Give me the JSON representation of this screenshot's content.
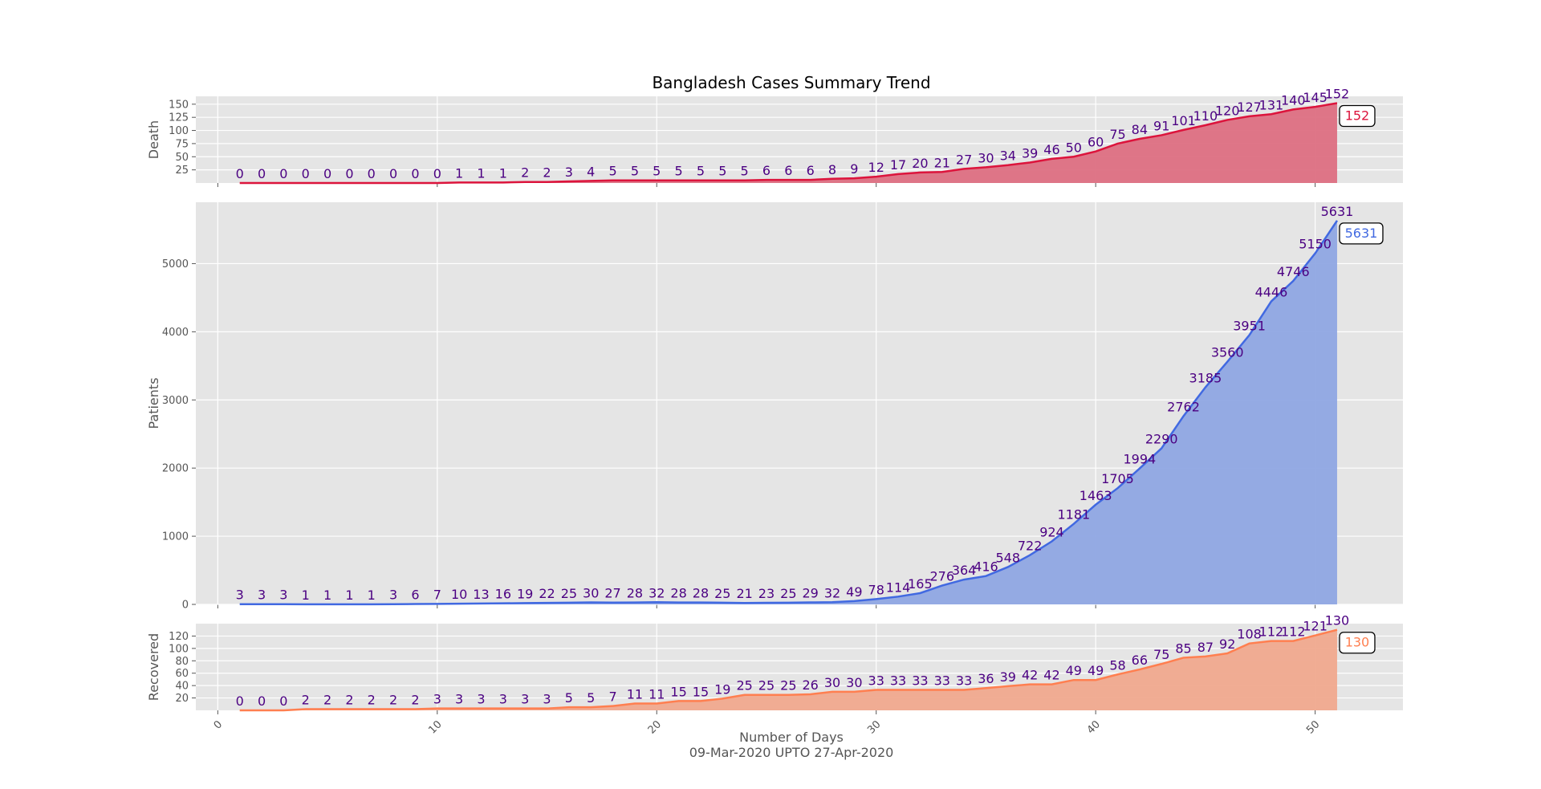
{
  "chart_data": {
    "type": "area",
    "title": "Bangladesh Cases Summary Trend",
    "xlabel": "Number of Days",
    "xlabel_sub": "09-Mar-2020 UPTO 27-Apr-2020",
    "xlim": [
      -1,
      54
    ],
    "xticks": [
      0,
      10,
      20,
      30,
      40,
      50
    ],
    "grid": true,
    "x": [
      1,
      2,
      3,
      4,
      5,
      6,
      7,
      8,
      9,
      10,
      11,
      12,
      13,
      14,
      15,
      16,
      17,
      18,
      19,
      20,
      21,
      22,
      23,
      24,
      25,
      26,
      27,
      28,
      29,
      30,
      31,
      32,
      33,
      34,
      35,
      36,
      37,
      38,
      39,
      40,
      41,
      42,
      43,
      44,
      45,
      46,
      47,
      48,
      49,
      50,
      51
    ],
    "panels": [
      {
        "id": "death",
        "ylabel": "Death",
        "ylim": [
          0,
          165
        ],
        "yticks": [
          25,
          50,
          75,
          100,
          125,
          150
        ],
        "line_color": "#dc143c",
        "fill_color": "#dd6f82",
        "values": [
          0,
          0,
          0,
          0,
          0,
          0,
          0,
          0,
          0,
          0,
          1,
          1,
          1,
          2,
          2,
          3,
          4,
          5,
          5,
          5,
          5,
          5,
          5,
          5,
          6,
          6,
          6,
          8,
          9,
          12,
          17,
          20,
          21,
          27,
          30,
          34,
          39,
          46,
          50,
          60,
          75,
          84,
          91,
          101,
          110,
          120,
          127,
          131,
          140,
          145,
          152
        ],
        "last_label": "152"
      },
      {
        "id": "patients",
        "ylabel": "Patients",
        "ylim": [
          0,
          5900
        ],
        "yticks": [
          0,
          1000,
          2000,
          3000,
          4000,
          5000
        ],
        "line_color": "#4169e1",
        "fill_color": "#8fa6e3",
        "values": [
          3,
          3,
          3,
          1,
          1,
          1,
          1,
          3,
          6,
          7,
          10,
          13,
          16,
          19,
          22,
          25,
          30,
          27,
          28,
          32,
          28,
          28,
          25,
          21,
          23,
          25,
          29,
          32,
          49,
          78,
          114,
          165,
          276,
          364,
          416,
          548,
          722,
          924,
          1181,
          1463,
          1705,
          1994,
          2290,
          2762,
          3185,
          3560,
          3951,
          4446,
          4746,
          5150,
          5631
        ],
        "last_label": "5631"
      },
      {
        "id": "recovered",
        "ylabel": "Recovered",
        "ylim": [
          0,
          140
        ],
        "yticks": [
          20,
          40,
          60,
          80,
          100,
          120
        ],
        "line_color": "#ff7f50",
        "fill_color": "#f0a98e",
        "values": [
          0,
          0,
          0,
          2,
          2,
          2,
          2,
          2,
          2,
          3,
          3,
          3,
          3,
          3,
          3,
          5,
          5,
          7,
          11,
          11,
          15,
          15,
          19,
          25,
          25,
          25,
          26,
          30,
          30,
          33,
          33,
          33,
          33,
          33,
          36,
          39,
          42,
          42,
          49,
          49,
          58,
          66,
          75,
          85,
          87,
          92,
          108,
          112,
          112,
          121,
          130
        ],
        "last_label": "130"
      }
    ]
  }
}
